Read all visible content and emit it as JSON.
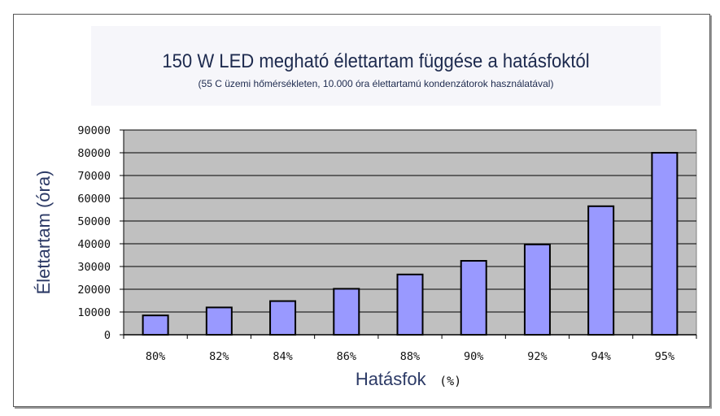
{
  "chart_data": {
    "type": "bar",
    "title": "150 W LED megható élettartam függése a hatásfoktól",
    "subtitle": "(55 C üzemi hőmérsékleten, 10.000 óra élettartamú kondenzátorok használatával)",
    "xlabel": "Hatásfok",
    "xlabel_unit": "(%)",
    "ylabel": "Élettartam (óra)",
    "categories": [
      "80%",
      "82%",
      "84%",
      "86%",
      "88%",
      "90%",
      "92%",
      "94%",
      "95%"
    ],
    "values": [
      8500,
      12000,
      14800,
      20200,
      26500,
      32500,
      39700,
      56500,
      80000
    ],
    "ylim": [
      0,
      90000
    ],
    "yticks": [
      0,
      10000,
      20000,
      30000,
      40000,
      50000,
      60000,
      70000,
      80000,
      90000
    ],
    "grid": true,
    "legend": "none",
    "colors": {
      "bar_fill": "#9999ff",
      "bar_stroke": "#000000",
      "plot_bg": "#c0c0c0",
      "grid": "#000000"
    }
  }
}
